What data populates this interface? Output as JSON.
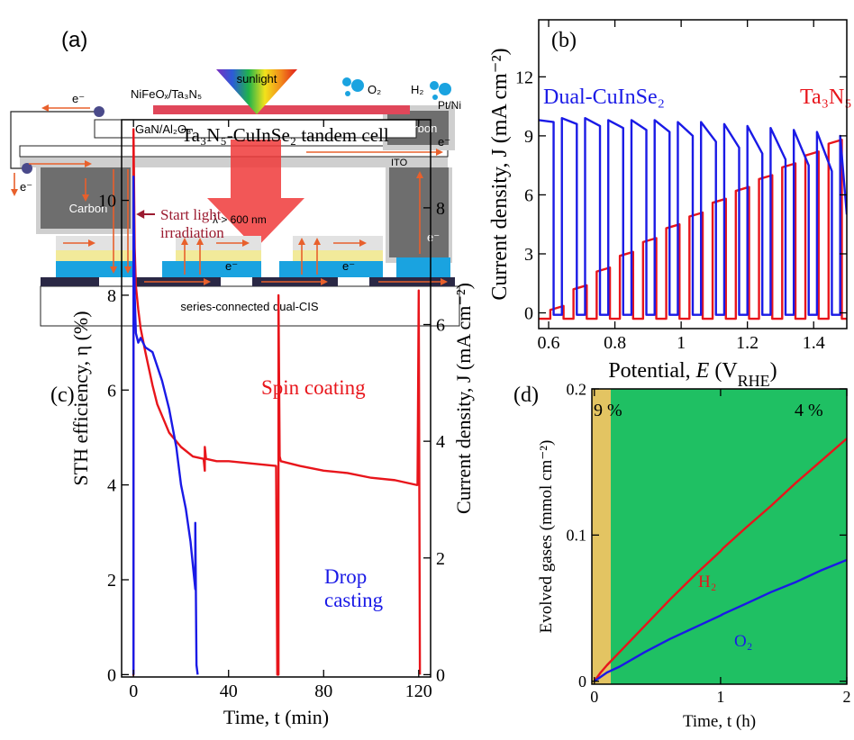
{
  "diagram": {
    "label": "(a)",
    "sample": "NiFeOₓ/Ta₃N₅",
    "sunlight": "sunlight",
    "o2": "O₂",
    "h2": "H₂",
    "cathode": "Pt/Ni",
    "substrate": "GaN/Al₂O₃",
    "carbon_top": "Carbon",
    "carbon_left": "Carbon",
    "ito": "ITO",
    "filter": "λ > 600 nm",
    "solar_cell": "series-connected dual-CIS",
    "electrons": [
      "e⁻",
      "e⁻",
      "e⁻",
      "e⁻",
      "e⁻",
      "e⁻"
    ]
  },
  "chart_data": [
    {
      "type": "line",
      "panel_label": "(b)",
      "xlabel": [
        "Potential, ",
        "E",
        " (V",
        "RHE",
        ")"
      ],
      "ylabel": "Current density, J (mA cm⁻²)",
      "xlim": [
        0.57,
        1.5
      ],
      "ylim": [
        -0.8,
        14.9
      ],
      "xticks": [
        0.6,
        0.8,
        1,
        1.2,
        1.4
      ],
      "yticks": [
        0,
        3,
        6,
        9,
        12
      ],
      "series": [
        {
          "name": "Ta₃N₅",
          "color": "#e8151b",
          "x": [
            0.57,
            0.605,
            0.605,
            0.645,
            0.645,
            0.675,
            0.675,
            0.715,
            0.715,
            0.745,
            0.745,
            0.785,
            0.785,
            0.815,
            0.815,
            0.855,
            0.855,
            0.885,
            0.885,
            0.925,
            0.925,
            0.955,
            0.955,
            0.995,
            0.995,
            1.025,
            1.025,
            1.065,
            1.065,
            1.095,
            1.095,
            1.135,
            1.135,
            1.165,
            1.165,
            1.205,
            1.205,
            1.235,
            1.235,
            1.275,
            1.275,
            1.305,
            1.305,
            1.345,
            1.345,
            1.375,
            1.375,
            1.415,
            1.415,
            1.445,
            1.445,
            1.485,
            1.485,
            1.5
          ],
          "values": [
            -0.3,
            -0.3,
            0.15,
            0.35,
            -0.3,
            -0.3,
            1.2,
            1.4,
            -0.3,
            -0.3,
            2.1,
            2.3,
            -0.3,
            -0.3,
            2.9,
            3.1,
            -0.3,
            -0.3,
            3.6,
            3.8,
            -0.3,
            -0.3,
            4.3,
            4.5,
            -0.3,
            -0.3,
            4.9,
            5.1,
            -0.3,
            -0.3,
            5.6,
            5.8,
            -0.3,
            -0.3,
            6.2,
            6.4,
            -0.3,
            -0.3,
            6.8,
            7.0,
            -0.3,
            -0.3,
            7.4,
            7.6,
            -0.3,
            -0.3,
            8.0,
            8.2,
            -0.3,
            -0.3,
            8.6,
            8.8,
            -0.3,
            -0.3
          ]
        },
        {
          "name": "Dual-CuInSe₂",
          "color": "#1a1ae6",
          "x": [
            0.57,
            0.615,
            0.615,
            0.64,
            0.64,
            0.685,
            0.685,
            0.71,
            0.71,
            0.755,
            0.755,
            0.78,
            0.78,
            0.825,
            0.825,
            0.85,
            0.85,
            0.895,
            0.895,
            0.92,
            0.92,
            0.965,
            0.965,
            0.99,
            0.99,
            1.035,
            1.035,
            1.06,
            1.06,
            1.105,
            1.105,
            1.13,
            1.13,
            1.175,
            1.175,
            1.2,
            1.2,
            1.245,
            1.245,
            1.27,
            1.27,
            1.315,
            1.315,
            1.34,
            1.34,
            1.385,
            1.385,
            1.41,
            1.41,
            1.455,
            1.455,
            1.48,
            1.48,
            1.5
          ],
          "values": [
            9.8,
            9.7,
            -0.1,
            -0.1,
            9.9,
            9.6,
            -0.1,
            -0.1,
            9.9,
            9.5,
            -0.1,
            -0.1,
            9.8,
            9.4,
            -0.1,
            -0.1,
            9.8,
            9.3,
            -0.1,
            -0.1,
            9.8,
            9.2,
            -0.1,
            -0.1,
            9.7,
            9.0,
            -0.1,
            -0.1,
            9.7,
            8.7,
            -0.1,
            -0.1,
            9.6,
            8.4,
            -0.1,
            -0.1,
            9.5,
            8.1,
            -0.1,
            -0.1,
            9.4,
            7.8,
            -0.1,
            -0.1,
            9.3,
            7.5,
            -0.1,
            -0.1,
            9.2,
            7.2,
            -0.1,
            -0.1,
            9.0,
            5.0
          ]
        }
      ]
    },
    {
      "type": "line",
      "panel_label": "(c)",
      "title": "Ta₃N₅-CuInSe₂ tandem cell",
      "xlabel": "Time, t (min)",
      "ylabel": "STH efficiency, η (%)",
      "y2label": "Current density, J (mA cm⁻²)",
      "xlim": [
        -5,
        125
      ],
      "ylim": [
        -0.05,
        11.7
      ],
      "y2lim": [
        -0.04,
        9.51
      ],
      "xticks": [
        0,
        40,
        80,
        120
      ],
      "yticks": [
        0,
        2,
        4,
        6,
        8,
        10
      ],
      "y2ticks": [
        0,
        2,
        4,
        6,
        8
      ],
      "series": [
        {
          "color": "#e8151b",
          "x": [
            -0.5,
            0,
            0,
            0.5,
            1,
            2,
            3,
            5,
            8,
            10,
            15,
            20,
            25,
            29.5,
            30,
            30,
            30.5,
            35,
            40,
            50,
            60,
            60.5,
            61,
            61,
            61.5,
            62,
            70,
            80,
            90,
            100,
            110,
            119,
            119.5,
            120,
            120.5
          ],
          "values": [
            0,
            0,
            11.5,
            9,
            8.2,
            7.7,
            7.3,
            6.8,
            6.1,
            5.7,
            5.1,
            4.8,
            4.6,
            4.55,
            4.3,
            4.8,
            4.55,
            4.5,
            4.5,
            4.45,
            4.4,
            0,
            0,
            8,
            4.6,
            4.5,
            4.4,
            4.3,
            4.25,
            4.15,
            4.1,
            4.0,
            4.0,
            8.1,
            0
          ]
        },
        {
          "color": "#1a1ae6",
          "x": [
            0,
            0,
            0.5,
            1,
            2,
            3,
            5,
            8,
            10,
            12,
            15,
            18,
            20,
            22,
            24,
            25,
            26,
            26,
            26.5,
            27
          ],
          "values": [
            0,
            10.5,
            8,
            7.2,
            7.0,
            7.1,
            6.9,
            6.8,
            6.5,
            6.2,
            5.6,
            4.8,
            4.0,
            3.5,
            2.8,
            2.3,
            1.8,
            3.2,
            0.2,
            0
          ]
        }
      ],
      "annotations": [
        {
          "lines": [
            "Start light",
            "irradiation"
          ],
          "color": "#9b1b30"
        },
        {
          "lines": [
            "Spin coating"
          ],
          "color": "#e8151b"
        },
        {
          "lines": [
            "Drop",
            "casting"
          ],
          "color": "#1a1ae6"
        }
      ]
    },
    {
      "type": "line",
      "panel_label": "(d)",
      "xlabel": "Time, t (h)",
      "ylabel": "Evolved gases (mmol cm⁻²)",
      "xlim": [
        -0.02,
        2
      ],
      "ylim": [
        -0.002,
        0.2
      ],
      "xticks": [
        0,
        1,
        2
      ],
      "yticks": [
        0,
        0.1,
        0.2
      ],
      "regions": [
        {
          "x": [
            -0.02,
            0.13
          ],
          "color": "#e3c462",
          "label": "9 %"
        },
        {
          "x": [
            0.13,
            2
          ],
          "color": "#1fc063",
          "label": "4 %"
        }
      ],
      "series": [
        {
          "name": "H₂",
          "color": "#e8151b",
          "x": [
            0,
            0.05,
            0.1,
            0.2,
            0.4,
            0.6,
            0.8,
            1.0,
            1.02,
            1.2,
            1.4,
            1.6,
            1.8,
            2.0
          ],
          "values": [
            0,
            0.006,
            0.011,
            0.02,
            0.038,
            0.056,
            0.073,
            0.089,
            0.091,
            0.105,
            0.12,
            0.136,
            0.151,
            0.166
          ]
        },
        {
          "name": "O₂",
          "color": "#1a1ae6",
          "x": [
            0,
            0.05,
            0.1,
            0.2,
            0.4,
            0.6,
            0.8,
            1.0,
            1.02,
            1.2,
            1.4,
            1.6,
            1.8,
            2.0
          ],
          "values": [
            0,
            0.003,
            0.006,
            0.01,
            0.02,
            0.029,
            0.037,
            0.045,
            0.046,
            0.053,
            0.061,
            0.068,
            0.076,
            0.083
          ]
        }
      ]
    }
  ]
}
